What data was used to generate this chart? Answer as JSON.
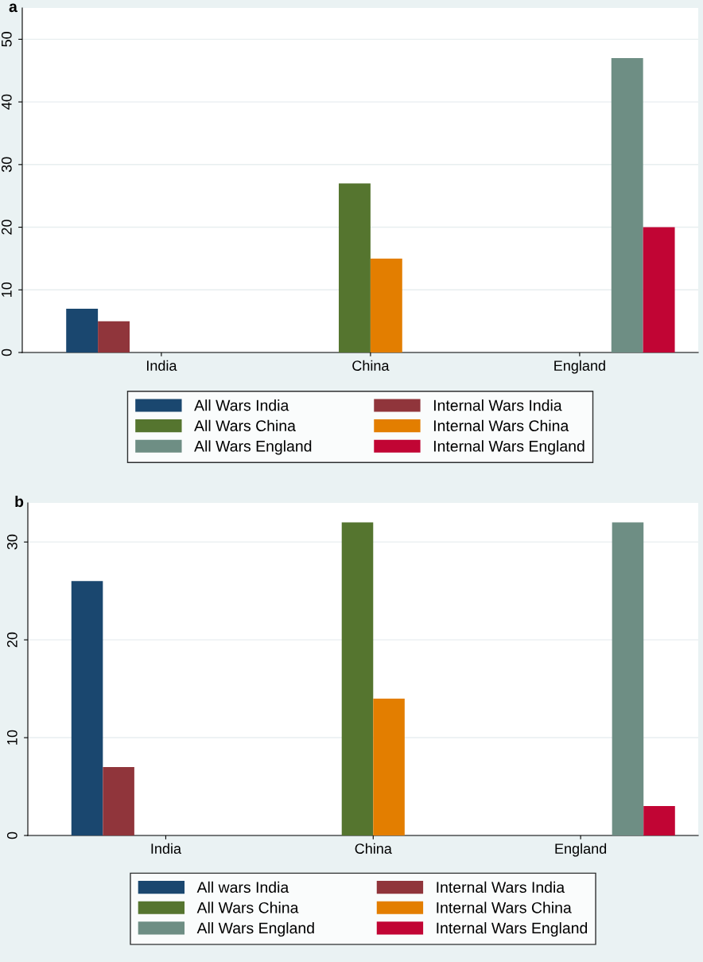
{
  "chart_data": [
    {
      "type": "bar",
      "title": "a",
      "categories": [
        "India",
        "China",
        "England"
      ],
      "ylim": [
        0,
        55
      ],
      "yticks": [
        0,
        10,
        20,
        30,
        40,
        50
      ],
      "grid": "y",
      "legend": "bottom",
      "series": [
        {
          "name": "All Wars India",
          "color": "#1a476f",
          "values": [
            7,
            null,
            null
          ]
        },
        {
          "name": "Internal Wars India",
          "color": "#90353b",
          "values": [
            5,
            null,
            null
          ]
        },
        {
          "name": "All Wars China",
          "color": "#55752f",
          "values": [
            null,
            27,
            null
          ]
        },
        {
          "name": "Internal Wars China",
          "color": "#e37e00",
          "values": [
            null,
            15,
            null
          ]
        },
        {
          "name": "All Wars England",
          "color": "#6e8e84",
          "values": [
            null,
            null,
            47
          ]
        },
        {
          "name": "Internal Wars England",
          "color": "#c10534",
          "values": [
            null,
            null,
            20
          ]
        }
      ]
    },
    {
      "type": "bar",
      "title": "b",
      "categories": [
        "India",
        "China",
        "England"
      ],
      "ylim": [
        0,
        34
      ],
      "yticks": [
        0,
        10,
        20,
        30
      ],
      "grid": "y",
      "legend": "bottom",
      "series": [
        {
          "name": "All wars India",
          "color": "#1a476f",
          "values": [
            26,
            null,
            null
          ]
        },
        {
          "name": "Internal Wars India",
          "color": "#90353b",
          "values": [
            7,
            null,
            null
          ]
        },
        {
          "name": "All Wars China",
          "color": "#55752f",
          "values": [
            null,
            32,
            null
          ]
        },
        {
          "name": "Internal Wars China",
          "color": "#e37e00",
          "values": [
            null,
            14,
            null
          ]
        },
        {
          "name": "All Wars England",
          "color": "#6e8e84",
          "values": [
            null,
            null,
            32
          ]
        },
        {
          "name": "Internal Wars England",
          "color": "#c10534",
          "values": [
            null,
            null,
            3
          ]
        }
      ]
    }
  ]
}
